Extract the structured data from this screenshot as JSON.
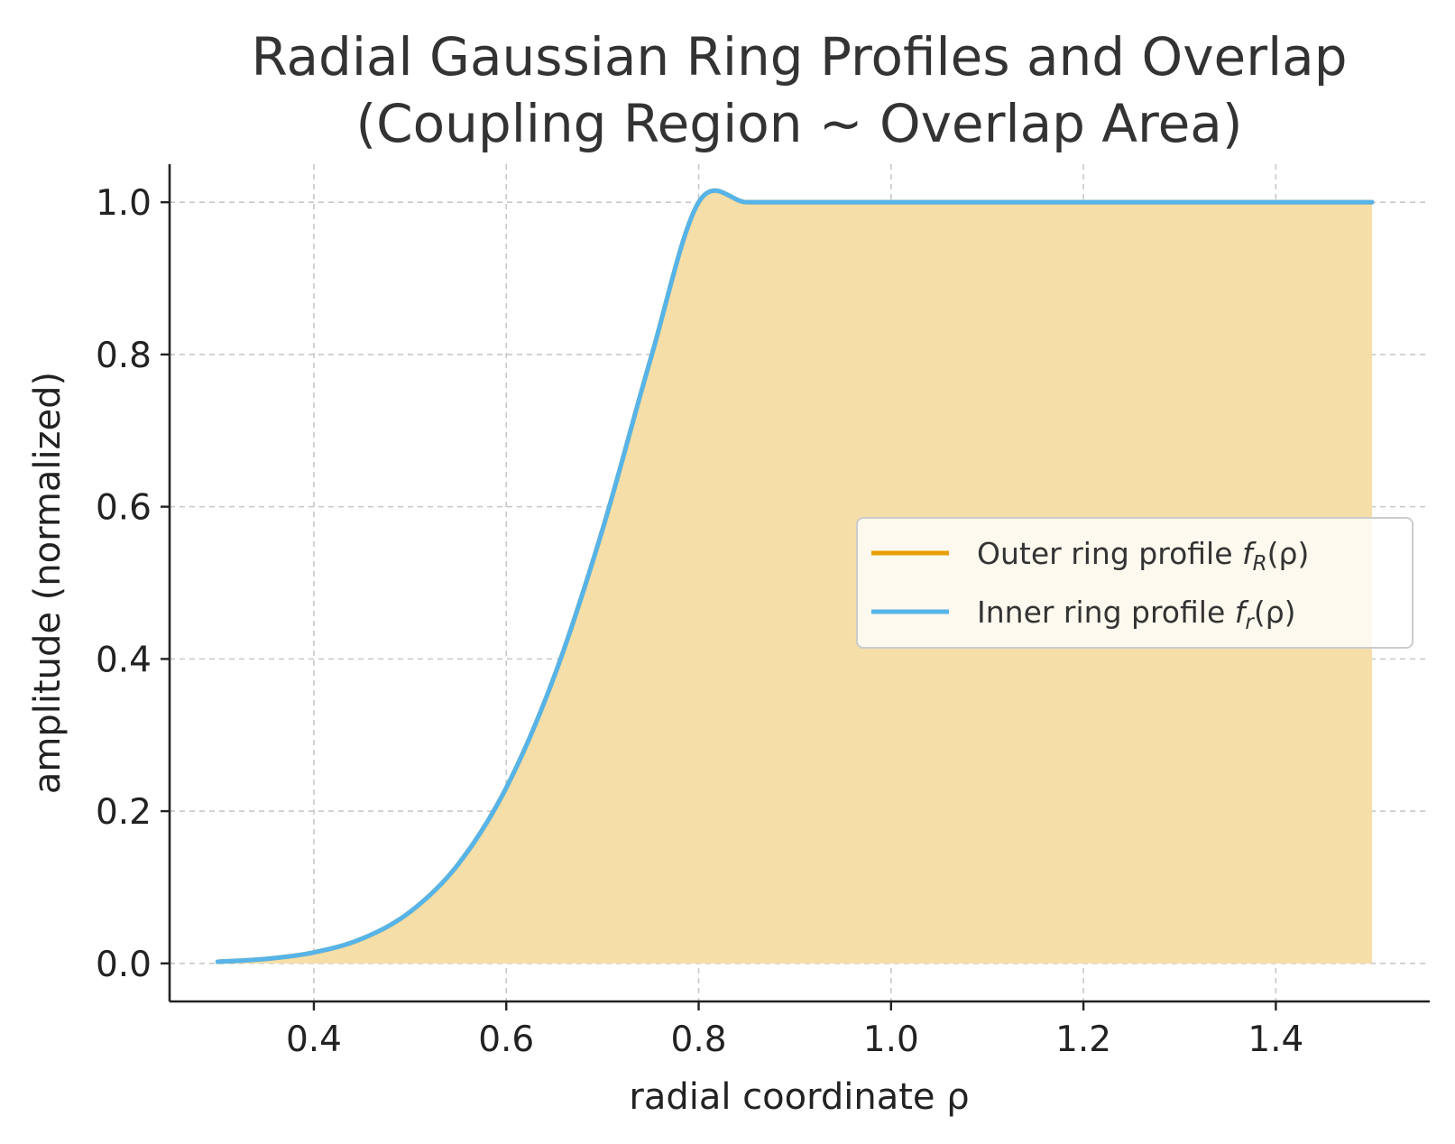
{
  "chart_data": {
    "type": "line",
    "title_lines": [
      "Radial Gaussian Ring Profiles and Overlap",
      "(Coupling Region ~ Overlap Area)"
    ],
    "xlabel": "radial coordinate ρ",
    "ylabel": "amplitude (normalized)",
    "xlim": [
      0.25,
      1.56
    ],
    "ylim": [
      -0.05,
      1.05
    ],
    "xticks": [
      0.4,
      0.6,
      0.8,
      1.0,
      1.2,
      1.4
    ],
    "xtick_labels": [
      "0.4",
      "0.6",
      "0.8",
      "1.0",
      "1.2",
      "1.4"
    ],
    "yticks": [
      0.0,
      0.2,
      0.4,
      0.6,
      0.8,
      1.0
    ],
    "ytick_labels": [
      "0.0",
      "0.2",
      "0.4",
      "0.6",
      "0.8",
      "1.0"
    ],
    "grid": true,
    "legend_position": "center-right",
    "shaded_region": {
      "description": "min of both profiles (overlap)",
      "color": "#F5DEA8"
    },
    "x": [
      0.3,
      0.35,
      0.4,
      0.45,
      0.5,
      0.55,
      0.6,
      0.65,
      0.7,
      0.75,
      0.8,
      0.85,
      0.9,
      0.95,
      1.0,
      1.05,
      1.1,
      1.15,
      1.2,
      1.25,
      1.3,
      1.35,
      1.4,
      1.45,
      1.5
    ],
    "series": [
      {
        "name_main": "Outer ring profile ",
        "name_func": "f",
        "name_sub": "R",
        "name_arg": "(ρ)",
        "color": "#E69F00",
        "values": [
          0.0022,
          0.0059,
          0.0144,
          0.0325,
          0.0677,
          0.1302,
          0.2308,
          0.3776,
          0.5698,
          0.7939,
          1.0,
          1.0,
          1.0,
          1.0,
          1.0,
          1.0,
          1.0,
          1.0,
          1.0,
          1.0,
          1.0,
          1.0,
          1.0,
          1.0,
          1.0
        ]
      },
      {
        "name_main": "Inner ring profile ",
        "name_func": "f",
        "name_sub": "r",
        "name_arg": "(ρ)",
        "color": "#56B4E9",
        "values": [
          0.0022,
          0.0059,
          0.0144,
          0.0325,
          0.0677,
          0.1302,
          0.2308,
          0.3776,
          0.5698,
          0.7939,
          1.0,
          1.0,
          1.0,
          1.0,
          1.0,
          1.0,
          1.0,
          1.0,
          1.0,
          1.0,
          1.0,
          1.0,
          1.0,
          1.0,
          1.0
        ]
      }
    ]
  }
}
